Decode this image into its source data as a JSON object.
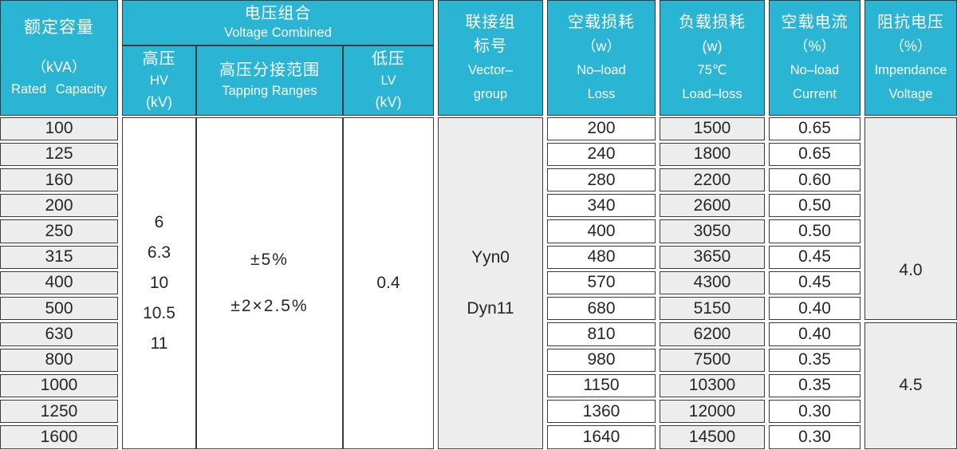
{
  "colors": {
    "header_bg": "#29b5d3",
    "cell_gray": "#ededed",
    "border": "#3a3a3a"
  },
  "table": {
    "header": {
      "rated_capacity": {
        "zh": "额定容量",
        "unit": "（kVA）",
        "en": "Rated Capacity"
      },
      "voltage_combined": {
        "zh": "电压组合",
        "en": "Voltage Combined"
      },
      "hv": {
        "zh": "高压",
        "en": "HV",
        "unit": "(kV)"
      },
      "tapping_ranges": {
        "zh": "高压分接范围",
        "en": "Tapping Ranges"
      },
      "lv": {
        "zh": "低压",
        "en": "LV",
        "unit": "(kV)"
      },
      "vector_group": {
        "zh_line1": "联接组",
        "zh_line2": "标号",
        "en_line1": "Vector–",
        "en_line2": "group"
      },
      "no_load_loss": {
        "zh": "空载损耗",
        "unit": "（w）",
        "en_line1": "No–load",
        "en_line2": "Loss"
      },
      "load_loss": {
        "zh": "负载损耗",
        "unit": "(w)",
        "condition": "75℃",
        "en": "Load–loss"
      },
      "no_load_current": {
        "zh": "空载电流",
        "unit": "（%）",
        "en_line1": "No–load",
        "en_line2": "Current"
      },
      "impedance_voltage": {
        "zh": "阻抗电压",
        "unit": "（%）",
        "en_line1": "Impendance",
        "en_line2": "Voltage"
      }
    },
    "shared": {
      "hv_kv": [
        "6",
        "6.3",
        "10",
        "10.5",
        "11"
      ],
      "tapping": [
        "±5%",
        "±2×2.5%"
      ],
      "lv_kv": "0.4",
      "vector_groups": [
        "Yyn0",
        "Dyn11"
      ],
      "impedance_rows_1_to_8": "4.0",
      "impedance_rows_9_to_13": "4.5"
    },
    "rows": [
      {
        "capacity_kva": "100",
        "no_load_loss_w": "200",
        "load_loss_w": "1500",
        "no_load_current_pct": "0.65"
      },
      {
        "capacity_kva": "125",
        "no_load_loss_w": "240",
        "load_loss_w": "1800",
        "no_load_current_pct": "0.65"
      },
      {
        "capacity_kva": "160",
        "no_load_loss_w": "280",
        "load_loss_w": "2200",
        "no_load_current_pct": "0.60"
      },
      {
        "capacity_kva": "200",
        "no_load_loss_w": "340",
        "load_loss_w": "2600",
        "no_load_current_pct": "0.50"
      },
      {
        "capacity_kva": "250",
        "no_load_loss_w": "400",
        "load_loss_w": "3050",
        "no_load_current_pct": "0.50"
      },
      {
        "capacity_kva": "315",
        "no_load_loss_w": "480",
        "load_loss_w": "3650",
        "no_load_current_pct": "0.45"
      },
      {
        "capacity_kva": "400",
        "no_load_loss_w": "570",
        "load_loss_w": "4300",
        "no_load_current_pct": "0.45"
      },
      {
        "capacity_kva": "500",
        "no_load_loss_w": "680",
        "load_loss_w": "5150",
        "no_load_current_pct": "0.40"
      },
      {
        "capacity_kva": "630",
        "no_load_loss_w": "810",
        "load_loss_w": "6200",
        "no_load_current_pct": "0.40"
      },
      {
        "capacity_kva": "800",
        "no_load_loss_w": "980",
        "load_loss_w": "7500",
        "no_load_current_pct": "0.35"
      },
      {
        "capacity_kva": "1000",
        "no_load_loss_w": "1150",
        "load_loss_w": "10300",
        "no_load_current_pct": "0.35"
      },
      {
        "capacity_kva": "1250",
        "no_load_loss_w": "1360",
        "load_loss_w": "12000",
        "no_load_current_pct": "0.30"
      },
      {
        "capacity_kva": "1600",
        "no_load_loss_w": "1640",
        "load_loss_w": "14500",
        "no_load_current_pct": "0.30"
      }
    ]
  }
}
